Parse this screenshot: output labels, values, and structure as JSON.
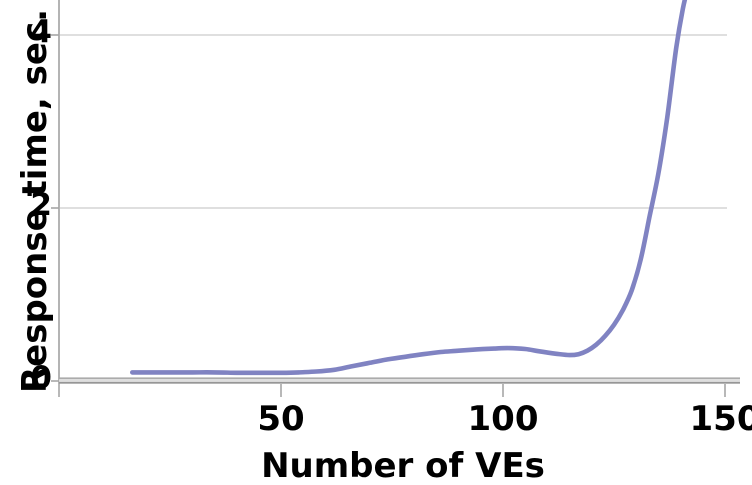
{
  "chart_data": {
    "type": "line",
    "title": "",
    "xlabel": "Number of VEs",
    "ylabel": "Response time, sec.",
    "x_ticks": [
      50,
      100,
      150
    ],
    "y_ticks": [
      0,
      2,
      4
    ],
    "xlim": [
      0,
      153.4
    ],
    "ylim": [
      0,
      4.41
    ],
    "grid": "horizontal-only",
    "legend": "none",
    "colors": {
      "line": "#8083c2",
      "axis_line": "#b4b4b4",
      "grid_line": "#cccccc",
      "tick_mark": "#a6a6a6",
      "baseline_top": "#ababab",
      "baseline_mid": "#dedede",
      "baseline_bottom": "#969696",
      "text": "#000000",
      "background": "#ffffff"
    },
    "series": [
      {
        "name": "response-time",
        "points": [
          [
            16.5,
            0.1
          ],
          [
            20,
            0.1
          ],
          [
            25,
            0.1
          ],
          [
            30,
            0.1
          ],
          [
            35,
            0.1
          ],
          [
            40,
            0.095
          ],
          [
            45,
            0.095
          ],
          [
            50,
            0.095
          ],
          [
            54,
            0.1
          ],
          [
            58,
            0.11
          ],
          [
            62,
            0.13
          ],
          [
            66,
            0.17
          ],
          [
            70,
            0.21
          ],
          [
            74,
            0.25
          ],
          [
            78,
            0.28
          ],
          [
            82,
            0.31
          ],
          [
            86,
            0.335
          ],
          [
            90,
            0.35
          ],
          [
            94,
            0.365
          ],
          [
            98,
            0.375
          ],
          [
            101,
            0.38
          ],
          [
            105,
            0.37
          ],
          [
            108,
            0.345
          ],
          [
            112,
            0.315
          ],
          [
            115,
            0.3
          ],
          [
            117,
            0.31
          ],
          [
            119,
            0.35
          ],
          [
            121,
            0.42
          ],
          [
            123,
            0.52
          ],
          [
            125,
            0.65
          ],
          [
            127,
            0.82
          ],
          [
            129,
            1.05
          ],
          [
            131,
            1.4
          ],
          [
            133,
            1.9
          ],
          [
            135,
            2.4
          ],
          [
            137,
            3.05
          ],
          [
            139,
            3.85
          ],
          [
            140.5,
            4.3
          ],
          [
            141.4,
            4.5
          ]
        ]
      }
    ]
  }
}
